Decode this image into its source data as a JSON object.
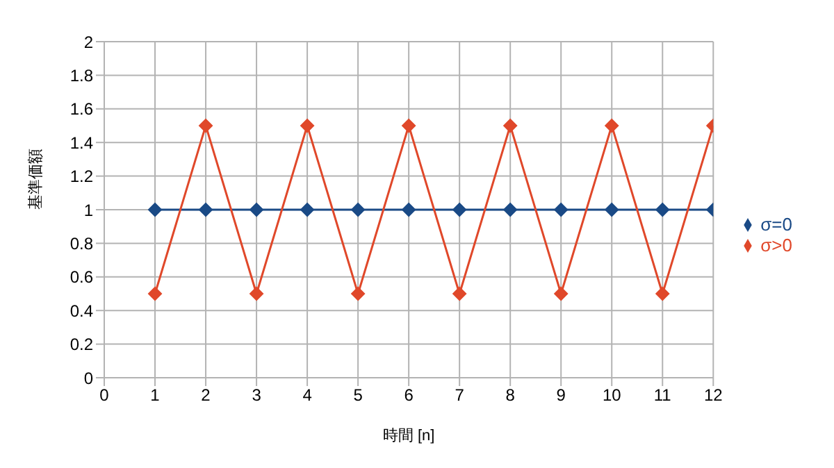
{
  "chart_data": {
    "type": "line",
    "xlabel": "時間 [n]",
    "ylabel": "基準価額",
    "x": [
      1,
      2,
      3,
      4,
      5,
      6,
      7,
      8,
      9,
      10,
      11,
      12
    ],
    "series": [
      {
        "name": "σ=0",
        "color": "#1a4a86",
        "values": [
          1,
          1,
          1,
          1,
          1,
          1,
          1,
          1,
          1,
          1,
          1,
          1
        ]
      },
      {
        "name": "σ>0",
        "color": "#e0482a",
        "values": [
          0.5,
          1.5,
          0.5,
          1.5,
          0.5,
          1.5,
          0.5,
          1.5,
          0.5,
          1.5,
          0.5,
          1.5
        ]
      }
    ],
    "xlim": [
      0,
      12
    ],
    "xticks": [
      0,
      1,
      2,
      3,
      4,
      5,
      6,
      7,
      8,
      9,
      10,
      11,
      12
    ],
    "ylim": [
      0,
      2
    ],
    "yticks": [
      0,
      0.2,
      0.4,
      0.6,
      0.8,
      1,
      1.2,
      1.4,
      1.6,
      1.8,
      2
    ],
    "grid": true,
    "legend": "right",
    "marker": "diamond",
    "line_style": "solid"
  }
}
